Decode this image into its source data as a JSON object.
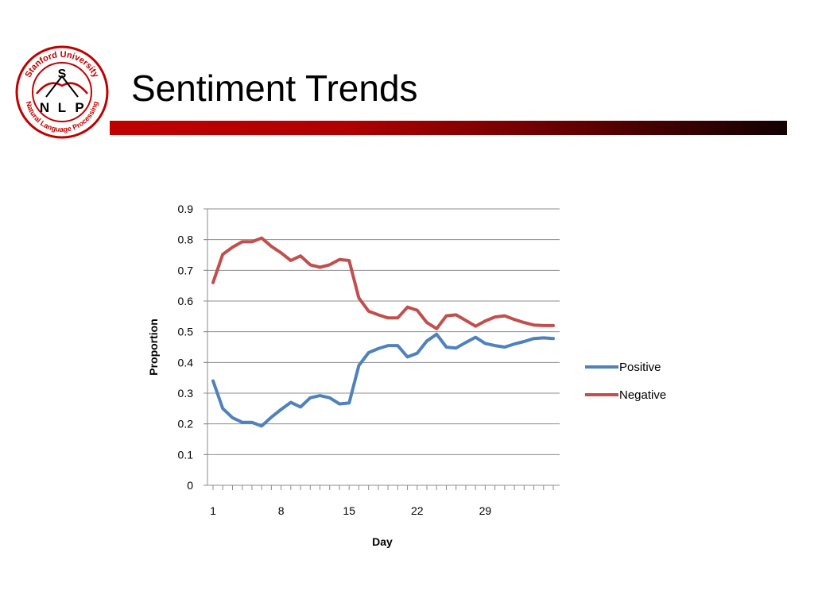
{
  "slide": {
    "title": "Sentiment Trends"
  },
  "logo": {
    "top_text": "Stanford University",
    "bottom_text": "Natural Language Processing",
    "center_letter": "S",
    "letters": [
      "N",
      "L",
      "P"
    ],
    "colors": {
      "ring": "#c00000",
      "letters": "#000000"
    }
  },
  "colors": {
    "positive": "#4f81bd",
    "negative": "#c0504d",
    "title_bar_start": "#c00000",
    "title_bar_end": "#120000",
    "gridline": "#8c8c8c"
  },
  "chart_data": {
    "type": "line",
    "xlabel": "Day",
    "ylabel": "Proportion",
    "ylim": [
      0,
      0.9
    ],
    "yticks": [
      0,
      0.1,
      0.2,
      0.3,
      0.4,
      0.5,
      0.6,
      0.7,
      0.8,
      0.9
    ],
    "xlim": [
      1,
      36
    ],
    "xtick_labels": [
      "1",
      "8",
      "15",
      "22",
      "29"
    ],
    "grid": "horizontal",
    "legend_position": "right",
    "x": [
      1,
      2,
      3,
      4,
      5,
      6,
      7,
      8,
      9,
      10,
      11,
      12,
      13,
      14,
      15,
      16,
      17,
      18,
      19,
      20,
      21,
      22,
      23,
      24,
      25,
      26,
      27,
      28,
      29,
      30,
      31,
      32,
      33,
      34,
      35,
      36
    ],
    "series": [
      {
        "name": "Positive",
        "values": [
          0.34,
          0.25,
          0.22,
          0.205,
          0.205,
          0.193,
          0.222,
          0.247,
          0.27,
          0.255,
          0.285,
          0.292,
          0.285,
          0.265,
          0.268,
          0.39,
          0.432,
          0.445,
          0.455,
          0.455,
          0.418,
          0.43,
          0.47,
          0.492,
          0.45,
          0.447,
          0.465,
          0.482,
          0.462,
          0.455,
          0.45,
          0.46,
          0.468,
          0.478,
          0.48,
          0.478
        ]
      },
      {
        "name": "Negative",
        "values": [
          0.66,
          0.752,
          0.775,
          0.793,
          0.793,
          0.805,
          0.778,
          0.757,
          0.732,
          0.747,
          0.718,
          0.71,
          0.718,
          0.735,
          0.732,
          0.61,
          0.567,
          0.555,
          0.545,
          0.545,
          0.58,
          0.57,
          0.53,
          0.51,
          0.552,
          0.555,
          0.537,
          0.518,
          0.535,
          0.548,
          0.552,
          0.54,
          0.53,
          0.522,
          0.52,
          0.52
        ]
      }
    ]
  }
}
